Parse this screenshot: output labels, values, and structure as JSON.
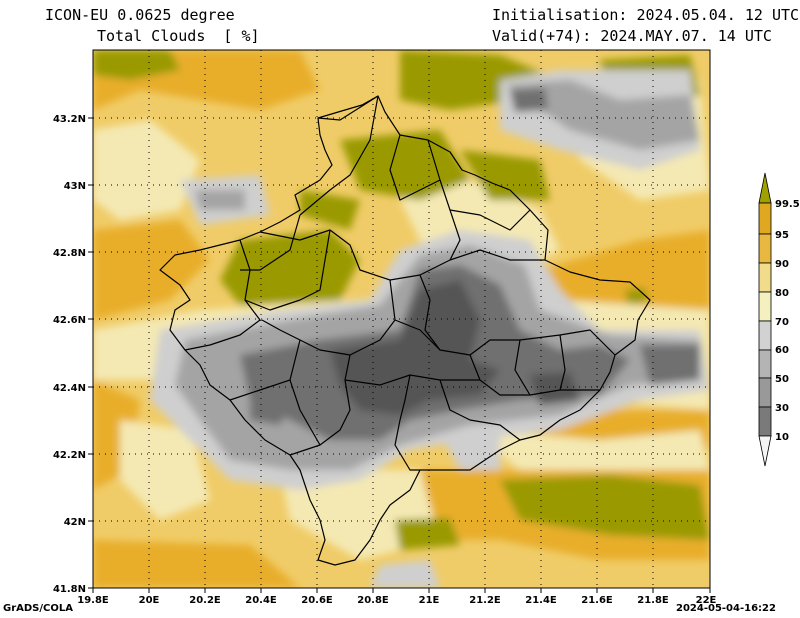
{
  "header": {
    "model": "ICON-EU 0.0625 degree",
    "field": "Total Clouds  [ %]",
    "init_label": "Initialisation: 2024.05.04. 12 UTC",
    "valid_label": "Valid(+74): 2024.MAY.07. 14 UTC"
  },
  "footer": {
    "credit": "GrADS/COLA",
    "timestamp": "2024-05-04-16:22"
  },
  "axes": {
    "x_ticks": [
      "19.8E",
      "20E",
      "20.2E",
      "20.4E",
      "20.6E",
      "20.8E",
      "21E",
      "21.2E",
      "21.4E",
      "21.6E",
      "21.8E",
      "22E"
    ],
    "y_ticks": [
      "43.2N",
      "43N",
      "42.8N",
      "42.6N",
      "42.4N",
      "42.2N",
      "42N",
      "41.8N"
    ]
  },
  "colorbar": {
    "levels": [
      "10",
      "30",
      "50",
      "60",
      "70",
      "80",
      "90",
      "95",
      "99.5"
    ],
    "colors": [
      "#4d4d4d",
      "#7a7a7a",
      "#999999",
      "#b4b4b4",
      "#d2d2d2",
      "#f4f0c0",
      "#f0dc8a",
      "#e8b840",
      "#e0a820",
      "#a0a000"
    ]
  },
  "palette": {
    "olive": "#9a9a05",
    "orange": "#e8ae2c",
    "gold": "#efc760",
    "cream": "#f4e9b3",
    "lightgray": "#cfcfcf",
    "gray": "#a4a4a4",
    "dark": "#6f6f6f",
    "darkest": "#555555"
  }
}
